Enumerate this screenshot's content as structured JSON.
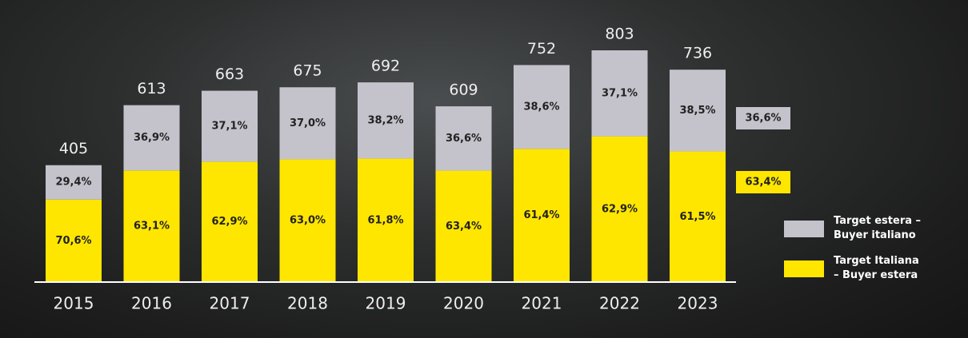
{
  "chart_data": {
    "type": "bar",
    "categories": [
      "2015",
      "2016",
      "2017",
      "2018",
      "2019",
      "2020",
      "2021",
      "2022",
      "2023"
    ],
    "totals": [
      405,
      613,
      663,
      675,
      692,
      609,
      752,
      803,
      736
    ],
    "series": [
      {
        "name": "Target estera – Buyer italiano",
        "color": "#c4c3cc",
        "values": [
          29.4,
          36.9,
          37.1,
          37.0,
          38.2,
          36.6,
          38.6,
          37.1,
          38.5
        ],
        "value_labels": [
          "29,4%",
          "36,9%",
          "37,1%",
          "37,0%",
          "38,2%",
          "36,6%",
          "38,6%",
          "37,1%",
          "38,5%"
        ]
      },
      {
        "name": "Target Italiana – Buyer estera",
        "color": "#ffe600",
        "values": [
          70.6,
          63.1,
          62.9,
          63.0,
          61.8,
          63.4,
          61.4,
          62.9,
          61.5
        ],
        "value_labels": [
          "70,6%",
          "63,1%",
          "62,9%",
          "63,0%",
          "61,8%",
          "63,4%",
          "61,4%",
          "62,9%",
          "61,5%"
        ]
      }
    ],
    "summary": {
      "values": [
        36.6,
        63.4
      ],
      "value_labels": [
        "36,6%",
        "63,4%"
      ]
    }
  }
}
